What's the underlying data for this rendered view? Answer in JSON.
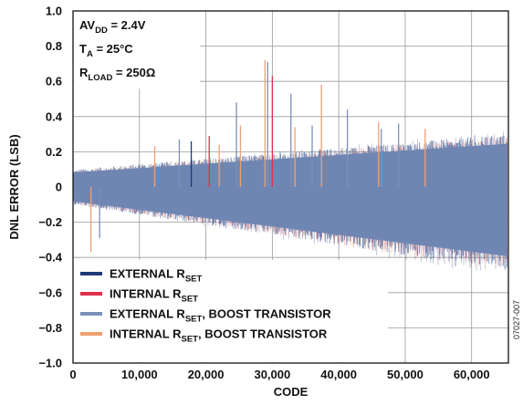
{
  "chart_data": {
    "type": "line",
    "xlabel": "CODE",
    "ylabel": "DNL ERROR (LSB)",
    "xlim": [
      0,
      65535
    ],
    "ylim": [
      -1.0,
      1.0
    ],
    "xticks": [
      0,
      10000,
      20000,
      30000,
      40000,
      50000,
      60000
    ],
    "xtick_labels": [
      "0",
      "10,000",
      "20,000",
      "30,000",
      "40,000",
      "50,000",
      "60,000"
    ],
    "yticks": [
      1.0,
      0.8,
      0.6,
      0.4,
      0.2,
      0,
      -0.2,
      -0.4,
      -0.6,
      -0.8,
      -1.0
    ],
    "ytick_labels": [
      "1.0",
      "0.8",
      "0.6",
      "0.4",
      "0.2",
      "0",
      "−0.2",
      "−0.4",
      "−0.6",
      "−0.8",
      "−1.0"
    ],
    "grid": true,
    "legend_position": "bottom-left",
    "conditions": [
      {
        "main": "AV",
        "sub": "DD",
        "rest": " = 2.4V"
      },
      {
        "main": "T",
        "sub": "A",
        "rest": " = 25°C"
      },
      {
        "main": "R",
        "sub": "LOAD",
        "rest": " = 250Ω"
      }
    ],
    "series": [
      {
        "name": "EXTERNAL RSET",
        "label_main": "EXTERNAL R",
        "label_sub": "SET",
        "label_rest": "",
        "color": "#1f3a78",
        "envelope": {
          "x": [
            0,
            65535
          ],
          "upper": [
            0.1,
            0.33
          ],
          "lower": [
            -0.1,
            -0.53
          ]
        }
      },
      {
        "name": "INTERNAL RSET",
        "label_main": "INTERNAL R",
        "label_sub": "SET",
        "label_rest": "",
        "color": "#e0304a",
        "envelope": {
          "x": [
            0,
            65535
          ],
          "upper": [
            0.1,
            0.3
          ],
          "lower": [
            -0.1,
            -0.5
          ]
        }
      },
      {
        "name": "EXTERNAL RSET, BOOST TRANSISTOR",
        "label_main": "EXTERNAL R",
        "label_sub": "SET",
        "label_rest": ", BOOST TRANSISTOR",
        "color": "#7a90b8",
        "envelope": {
          "x": [
            0,
            65535
          ],
          "upper": [
            0.1,
            0.3
          ],
          "lower": [
            -0.1,
            -0.48
          ]
        }
      },
      {
        "name": "INTERNAL RSET, BOOST TRANSISTOR",
        "label_main": "INTERNAL R",
        "label_sub": "SET",
        "label_rest": ", BOOST TRANSISTOR",
        "color": "#f0a070",
        "envelope": {
          "x": [
            0,
            65535
          ],
          "upper": [
            0.1,
            0.3
          ],
          "lower": [
            -0.1,
            -0.5
          ]
        }
      }
    ],
    "spikes": [
      {
        "x": 2700,
        "y": -0.37,
        "color": "#f0a070"
      },
      {
        "x": 4000,
        "y": -0.29,
        "color": "#7a90b8"
      },
      {
        "x": 12300,
        "y": 0.23,
        "color": "#f0a070"
      },
      {
        "x": 16000,
        "y": 0.27,
        "color": "#7a90b8"
      },
      {
        "x": 17800,
        "y": 0.26,
        "color": "#1f3a78"
      },
      {
        "x": 20500,
        "y": 0.29,
        "color": "#e0304a"
      },
      {
        "x": 22000,
        "y": 0.24,
        "color": "#f0a070"
      },
      {
        "x": 24600,
        "y": 0.48,
        "color": "#7a90b8"
      },
      {
        "x": 25200,
        "y": 0.35,
        "color": "#f0a070"
      },
      {
        "x": 28900,
        "y": 0.72,
        "color": "#f0a070"
      },
      {
        "x": 29300,
        "y": 0.71,
        "color": "#7a90b8"
      },
      {
        "x": 30000,
        "y": 0.63,
        "color": "#e0304a"
      },
      {
        "x": 32800,
        "y": 0.53,
        "color": "#7a90b8"
      },
      {
        "x": 33400,
        "y": 0.34,
        "color": "#f0a070"
      },
      {
        "x": 36000,
        "y": 0.35,
        "color": "#7a90b8"
      },
      {
        "x": 37400,
        "y": 0.58,
        "color": "#f0a070"
      },
      {
        "x": 41300,
        "y": 0.44,
        "color": "#7a90b8"
      },
      {
        "x": 46000,
        "y": 0.37,
        "color": "#f0a070"
      },
      {
        "x": 46400,
        "y": 0.33,
        "color": "#7a90b8"
      },
      {
        "x": 49000,
        "y": 0.36,
        "color": "#7a90b8"
      },
      {
        "x": 53000,
        "y": 0.33,
        "color": "#f0a070"
      }
    ],
    "doc_id": "07027-007"
  }
}
